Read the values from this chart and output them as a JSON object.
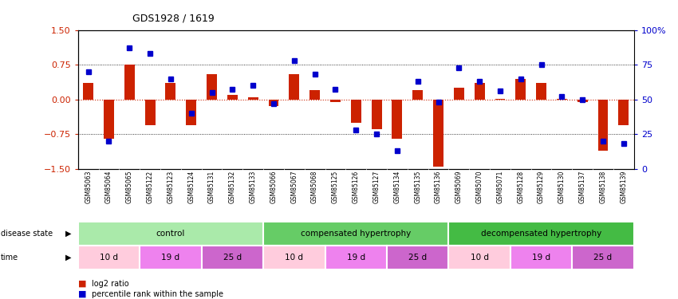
{
  "title": "GDS1928 / 1619",
  "samples": [
    "GSM85063",
    "GSM85064",
    "GSM85065",
    "GSM85122",
    "GSM85123",
    "GSM85124",
    "GSM85131",
    "GSM85132",
    "GSM85133",
    "GSM85066",
    "GSM85067",
    "GSM85068",
    "GSM85125",
    "GSM85126",
    "GSM85127",
    "GSM85134",
    "GSM85135",
    "GSM85136",
    "GSM85069",
    "GSM85070",
    "GSM85071",
    "GSM85128",
    "GSM85129",
    "GSM85130",
    "GSM85137",
    "GSM85138",
    "GSM85139"
  ],
  "log2_ratio": [
    0.35,
    -0.85,
    0.75,
    -0.55,
    0.35,
    -0.55,
    0.55,
    0.1,
    0.05,
    -0.15,
    0.55,
    0.2,
    -0.05,
    -0.5,
    -0.65,
    -0.85,
    0.2,
    -1.45,
    0.25,
    0.35,
    0.02,
    0.45,
    0.35,
    0.02,
    -0.05,
    -1.1,
    -0.55
  ],
  "percentile": [
    70,
    20,
    87,
    83,
    65,
    40,
    55,
    57,
    60,
    47,
    78,
    68,
    57,
    28,
    25,
    13,
    63,
    48,
    73,
    63,
    56,
    65,
    75,
    52,
    50,
    20,
    18
  ],
  "disease_state_groups": [
    {
      "label": "control",
      "start": 0,
      "end": 9,
      "color": "#AAEAAA"
    },
    {
      "label": "compensated hypertrophy",
      "start": 9,
      "end": 18,
      "color": "#66CC66"
    },
    {
      "label": "decompensated hypertrophy",
      "start": 18,
      "end": 27,
      "color": "#44BB44"
    }
  ],
  "time_groups": [
    {
      "label": "10 d",
      "start": 0,
      "end": 3,
      "color": "#FFCCDD"
    },
    {
      "label": "19 d",
      "start": 3,
      "end": 6,
      "color": "#EE82EE"
    },
    {
      "label": "25 d",
      "start": 6,
      "end": 9,
      "color": "#CC66CC"
    },
    {
      "label": "10 d",
      "start": 9,
      "end": 12,
      "color": "#FFCCDD"
    },
    {
      "label": "19 d",
      "start": 12,
      "end": 15,
      "color": "#EE82EE"
    },
    {
      "label": "25 d",
      "start": 15,
      "end": 18,
      "color": "#CC66CC"
    },
    {
      "label": "10 d",
      "start": 18,
      "end": 21,
      "color": "#FFCCDD"
    },
    {
      "label": "19 d",
      "start": 21,
      "end": 24,
      "color": "#EE82EE"
    },
    {
      "label": "25 d",
      "start": 24,
      "end": 27,
      "color": "#CC66CC"
    }
  ],
  "ylim": [
    -1.5,
    1.5
  ],
  "yticks_left": [
    -1.5,
    -0.75,
    0.0,
    0.75,
    1.5
  ],
  "yticks_right": [
    0,
    25,
    50,
    75,
    100
  ],
  "bar_color": "#CC2200",
  "dot_color": "#0000CC",
  "bg_color": "#FFFFFF"
}
